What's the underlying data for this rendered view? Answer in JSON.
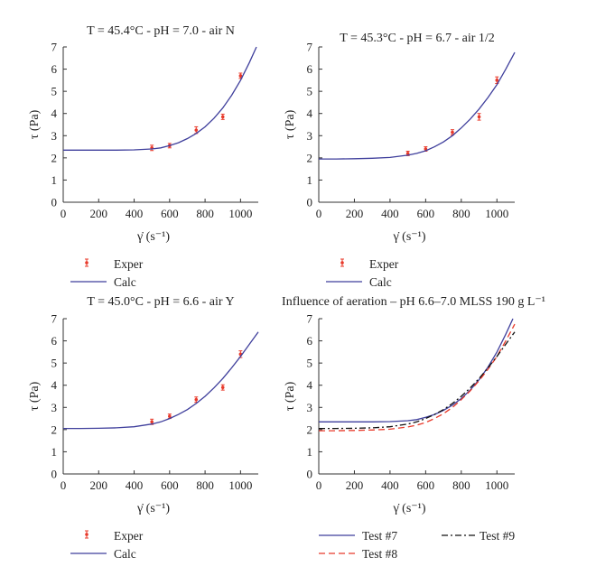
{
  "chart_data": [
    {
      "type": "scatter",
      "title": "T = 45.4°C - pH = 7.0 - air N",
      "xlabel": "γ̇ (s⁻¹)",
      "ylabel": "τ (Pa)",
      "xlim": [
        0,
        1100
      ],
      "ylim": [
        0,
        7
      ],
      "xticks": [
        "0",
        "200",
        "400",
        "600",
        "800",
        "1000"
      ],
      "yticks": [
        "0",
        "1",
        "2",
        "3",
        "4",
        "5",
        "6",
        "7"
      ],
      "grid": false,
      "legend": "below",
      "series": [
        {
          "name": "Exper",
          "kind": "points",
          "color": "#e8392a",
          "x": [
            500,
            600,
            750,
            900,
            1000
          ],
          "y": [
            2.45,
            2.55,
            3.25,
            3.85,
            5.7
          ],
          "err": [
            0.12,
            0.1,
            0.15,
            0.12,
            0.12
          ]
        },
        {
          "name": "Calc",
          "kind": "line",
          "color": "#3f3f9c",
          "x": [
            0,
            100,
            200,
            300,
            400,
            500,
            550,
            600,
            650,
            700,
            750,
            800,
            850,
            900,
            950,
            1000,
            1050,
            1090
          ],
          "y": [
            2.35,
            2.35,
            2.35,
            2.35,
            2.36,
            2.4,
            2.45,
            2.55,
            2.68,
            2.87,
            3.1,
            3.4,
            3.78,
            4.25,
            4.82,
            5.5,
            6.3,
            7.0
          ]
        }
      ]
    },
    {
      "type": "scatter",
      "title": "T = 45.3°C - pH = 6.7 - air 1/2",
      "xlabel": "γ̇ (s⁻¹)",
      "ylabel": "τ (Pa)",
      "xlim": [
        0,
        1100
      ],
      "ylim": [
        0,
        7
      ],
      "xticks": [
        "0",
        "200",
        "400",
        "600",
        "800",
        "1000"
      ],
      "yticks": [
        "0",
        "1",
        "2",
        "3",
        "4",
        "5",
        "6",
        "7"
      ],
      "grid": false,
      "legend": "below",
      "series": [
        {
          "name": "Exper",
          "kind": "points",
          "color": "#e8392a",
          "x": [
            500,
            600,
            750,
            900,
            1000
          ],
          "y": [
            2.2,
            2.4,
            3.15,
            3.85,
            5.5
          ],
          "err": [
            0.1,
            0.1,
            0.12,
            0.15,
            0.15
          ]
        },
        {
          "name": "Calc",
          "kind": "line",
          "color": "#3f3f9c",
          "x": [
            0,
            100,
            200,
            300,
            400,
            500,
            550,
            600,
            650,
            700,
            750,
            800,
            850,
            900,
            950,
            1000,
            1050,
            1100
          ],
          "y": [
            1.95,
            1.95,
            1.96,
            1.98,
            2.02,
            2.12,
            2.2,
            2.32,
            2.5,
            2.72,
            3.0,
            3.35,
            3.75,
            4.2,
            4.72,
            5.3,
            6.0,
            6.75
          ]
        }
      ]
    },
    {
      "type": "scatter",
      "title": "T = 45.0°C - pH = 6.6 - air Y",
      "xlabel": "γ̇ (s⁻¹)",
      "ylabel": "τ (Pa)",
      "xlim": [
        0,
        1100
      ],
      "ylim": [
        0,
        7
      ],
      "xticks": [
        "0",
        "200",
        "400",
        "600",
        "800",
        "1000"
      ],
      "yticks": [
        "0",
        "1",
        "2",
        "3",
        "4",
        "5",
        "6",
        "7"
      ],
      "grid": false,
      "legend": "below",
      "series": [
        {
          "name": "Exper",
          "kind": "points",
          "color": "#e8392a",
          "x": [
            500,
            600,
            750,
            900,
            1000
          ],
          "y": [
            2.35,
            2.6,
            3.35,
            3.9,
            5.4
          ],
          "err": [
            0.12,
            0.1,
            0.12,
            0.12,
            0.15
          ]
        },
        {
          "name": "Calc",
          "kind": "line",
          "color": "#3f3f9c",
          "x": [
            0,
            100,
            200,
            300,
            400,
            500,
            550,
            600,
            650,
            700,
            750,
            800,
            850,
            900,
            950,
            1000,
            1050,
            1100
          ],
          "y": [
            2.05,
            2.05,
            2.06,
            2.08,
            2.13,
            2.25,
            2.35,
            2.5,
            2.68,
            2.9,
            3.18,
            3.5,
            3.88,
            4.3,
            4.78,
            5.3,
            5.85,
            6.4
          ]
        }
      ]
    },
    {
      "type": "line",
      "title": "Influence of aeration – pH 6.6–7.0 MLSS 190 g L⁻¹",
      "xlabel": "γ̇ (s⁻¹)",
      "ylabel": "τ (Pa)",
      "xlim": [
        0,
        1100
      ],
      "ylim": [
        0,
        7
      ],
      "xticks": [
        "0",
        "200",
        "400",
        "600",
        "800",
        "1000"
      ],
      "yticks": [
        "0",
        "1",
        "2",
        "3",
        "4",
        "5",
        "6",
        "7"
      ],
      "grid": false,
      "legend": "below",
      "series": [
        {
          "name": "Test #7",
          "kind": "line",
          "dash": "",
          "color": "#3f3f9c",
          "x": [
            0,
            100,
            200,
            300,
            400,
            500,
            550,
            600,
            650,
            700,
            750,
            800,
            850,
            900,
            950,
            1000,
            1050,
            1090
          ],
          "y": [
            2.35,
            2.35,
            2.35,
            2.35,
            2.36,
            2.4,
            2.45,
            2.55,
            2.68,
            2.87,
            3.1,
            3.4,
            3.78,
            4.25,
            4.82,
            5.5,
            6.3,
            7.0
          ]
        },
        {
          "name": "Test #8",
          "kind": "line",
          "dash": "7,4",
          "color": "#e8392a",
          "x": [
            0,
            100,
            200,
            300,
            400,
            500,
            550,
            600,
            650,
            700,
            750,
            800,
            850,
            900,
            950,
            1000,
            1050,
            1100
          ],
          "y": [
            1.95,
            1.95,
            1.96,
            1.98,
            2.02,
            2.12,
            2.2,
            2.32,
            2.5,
            2.72,
            3.0,
            3.35,
            3.75,
            4.2,
            4.72,
            5.3,
            6.0,
            6.75
          ]
        },
        {
          "name": "Test #9",
          "kind": "line",
          "dash": "7,3,2,3",
          "color": "#111111",
          "x": [
            0,
            100,
            200,
            300,
            400,
            500,
            550,
            600,
            650,
            700,
            750,
            800,
            850,
            900,
            950,
            1000,
            1050,
            1100
          ],
          "y": [
            2.05,
            2.05,
            2.06,
            2.08,
            2.13,
            2.25,
            2.35,
            2.5,
            2.68,
            2.9,
            3.18,
            3.5,
            3.88,
            4.3,
            4.78,
            5.3,
            5.85,
            6.4
          ]
        }
      ]
    }
  ]
}
